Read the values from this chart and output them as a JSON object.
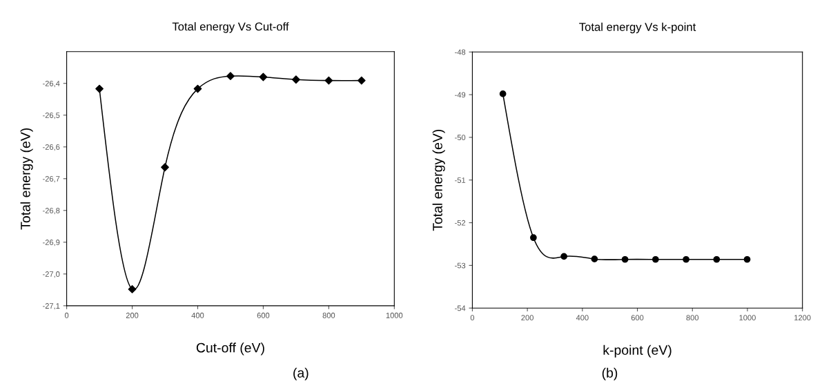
{
  "chart_data": [
    {
      "type": "line",
      "title": "Total energy Vs Cut-off",
      "xlabel": "Cut-off (eV)",
      "ylabel": "Total energy (eV)",
      "annotations": [
        "(a)"
      ],
      "x": [
        100,
        200,
        300,
        400,
        500,
        600,
        700,
        800,
        900
      ],
      "series": [
        {
          "color": "#000000",
          "values": [
            -26.417,
            -27.048,
            -26.664,
            -26.417,
            -26.377,
            -26.38,
            -26.388,
            -26.391,
            -26.391
          ]
        }
      ],
      "marker": "diamond",
      "line_style": "solid",
      "grid": false,
      "legend": false,
      "xlim": [
        0,
        1000
      ],
      "xticks": [
        0,
        200,
        400,
        600,
        800,
        1000
      ],
      "ylim": [
        -27.1,
        -26.3
      ],
      "yticks": [
        {
          "value": -27.1,
          "label": "-27,1"
        },
        {
          "value": -27.0,
          "label": "-27,0"
        },
        {
          "value": -26.9,
          "label": "-26,9"
        },
        {
          "value": -26.8,
          "label": "-26,8"
        },
        {
          "value": -26.7,
          "label": "-26,7"
        },
        {
          "value": -26.6,
          "label": "-26,6"
        },
        {
          "value": -26.5,
          "label": "-26,5"
        },
        {
          "value": -26.4,
          "label": "-26,4"
        }
      ]
    },
    {
      "type": "line",
      "title": "Total energy Vs k-point",
      "xlabel": "k-point (eV)",
      "ylabel": "Total energy (eV)",
      "annotations": [
        "(b)"
      ],
      "x": [
        111,
        222,
        333,
        444,
        555,
        666,
        777,
        888,
        999
      ],
      "series": [
        {
          "color": "#000000",
          "values": [
            -48.98,
            -52.35,
            -52.79,
            -52.85,
            -52.86,
            -52.86,
            -52.86,
            -52.86,
            -52.86
          ]
        }
      ],
      "marker": "circle",
      "line_style": "solid",
      "grid": false,
      "legend": false,
      "xlim": [
        0,
        1200
      ],
      "xticks": [
        0,
        200,
        400,
        600,
        800,
        1000,
        1200
      ],
      "ylim": [
        -54,
        -48
      ],
      "yticks": [
        -54,
        -53,
        -52,
        -51,
        -50,
        -49,
        -48
      ]
    }
  ]
}
